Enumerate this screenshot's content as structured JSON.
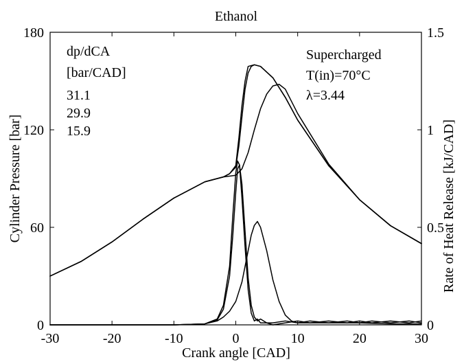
{
  "chart_data": {
    "type": "line",
    "title": "Ethanol",
    "xlabel": "Crank angle [CAD]",
    "ylabel_left": "Cylinder Pressure [bar]",
    "ylabel_right": "Rate of Heat Release [kJ/CAD]",
    "xlim": [
      -30,
      30
    ],
    "ylim_left": [
      0,
      180
    ],
    "ylim_right": [
      0,
      1.5
    ],
    "x_ticks": [
      "-30",
      "-20",
      "-10",
      "0",
      "10",
      "20",
      "30"
    ],
    "y_ticks_left": [
      "0",
      "60",
      "120",
      "180"
    ],
    "y_ticks_right": [
      "0",
      "0.5",
      "1",
      "1.5"
    ],
    "grid": false,
    "annotations": {
      "left_header_1": "dp/dCA",
      "left_header_2": "[bar/CAD]",
      "values": [
        "31.1",
        "29.9",
        "15.9"
      ],
      "right_1": "Supercharged",
      "right_2": "T(in)=70°C",
      "right_3": "λ=3.44"
    },
    "series": [
      {
        "axis": "left",
        "x": [
          -30,
          -25,
          -20,
          -15,
          -10,
          -5,
          -2,
          -1,
          0,
          0.5,
          1,
          1.5,
          2,
          3,
          4,
          6,
          8,
          10,
          15,
          20,
          25,
          30
        ],
        "values": [
          30,
          39,
          51,
          65,
          78,
          88,
          91,
          93,
          98,
          115,
          135,
          150,
          159,
          160,
          159,
          152,
          140,
          126,
          98,
          77,
          61,
          50
        ]
      },
      {
        "axis": "left",
        "x": [
          -30,
          -25,
          -20,
          -15,
          -10,
          -5,
          -2,
          -1,
          0,
          0.5,
          1,
          1.5,
          2,
          2.5,
          3,
          4,
          6,
          8,
          10,
          15,
          20,
          25,
          30
        ],
        "values": [
          30,
          39,
          51,
          65,
          78,
          88,
          91,
          93,
          97,
          110,
          128,
          145,
          155,
          159,
          160,
          159,
          152,
          140,
          126,
          98,
          77,
          61,
          50
        ]
      },
      {
        "axis": "left",
        "x": [
          -30,
          -25,
          -20,
          -15,
          -10,
          -5,
          -2,
          0,
          1,
          2,
          3,
          4,
          5,
          6,
          7,
          8,
          10,
          15,
          20,
          25,
          30
        ],
        "values": [
          30,
          39,
          51,
          65,
          78,
          88,
          91,
          92,
          96,
          106,
          120,
          133,
          142,
          147,
          148,
          145,
          130,
          99,
          77,
          61,
          50
        ]
      },
      {
        "axis": "right",
        "x": [
          -30,
          -10,
          -5,
          -3,
          -2,
          -1,
          -0.5,
          0,
          0.3,
          0.6,
          1,
          1.5,
          2,
          2.5,
          3,
          3.5,
          4,
          5,
          6,
          8,
          10,
          12,
          15,
          18,
          20,
          22,
          25,
          28,
          30
        ],
        "values": [
          0,
          0,
          0.005,
          0.03,
          0.1,
          0.3,
          0.55,
          0.78,
          0.84,
          0.82,
          0.65,
          0.4,
          0.18,
          0.06,
          0.02,
          0.03,
          0.01,
          0.01,
          0,
          0.01,
          0.02,
          0.01,
          0.02,
          0.01,
          0.02,
          0.01,
          0.02,
          0.01,
          0.02
        ]
      },
      {
        "axis": "right",
        "x": [
          -30,
          -10,
          -5,
          -3,
          -2,
          -1,
          -0.5,
          0,
          0.3,
          0.6,
          1,
          1.5,
          2,
          2.5,
          3,
          3.5,
          4,
          5,
          6,
          8,
          10,
          12,
          15,
          18,
          20,
          22,
          25,
          28,
          30
        ],
        "values": [
          0,
          0,
          0.005,
          0.025,
          0.08,
          0.25,
          0.45,
          0.68,
          0.8,
          0.82,
          0.72,
          0.48,
          0.24,
          0.1,
          0.04,
          0.02,
          0.03,
          0.01,
          0.01,
          0.02,
          0.01,
          0.02,
          0.01,
          0.02,
          0.01,
          0.02,
          0.01,
          0.02,
          0.01
        ]
      },
      {
        "axis": "right",
        "x": [
          -30,
          -10,
          -5,
          -3,
          -2,
          -1,
          0,
          1,
          2,
          2.5,
          3,
          3.5,
          4,
          5,
          6,
          7,
          8,
          9,
          10,
          15,
          20,
          25,
          30
        ],
        "values": [
          0,
          0,
          0.005,
          0.02,
          0.04,
          0.07,
          0.12,
          0.22,
          0.38,
          0.46,
          0.51,
          0.53,
          0.5,
          0.38,
          0.23,
          0.12,
          0.05,
          0.02,
          0.01,
          0.01,
          0.01,
          0.005,
          0.005
        ]
      }
    ]
  }
}
